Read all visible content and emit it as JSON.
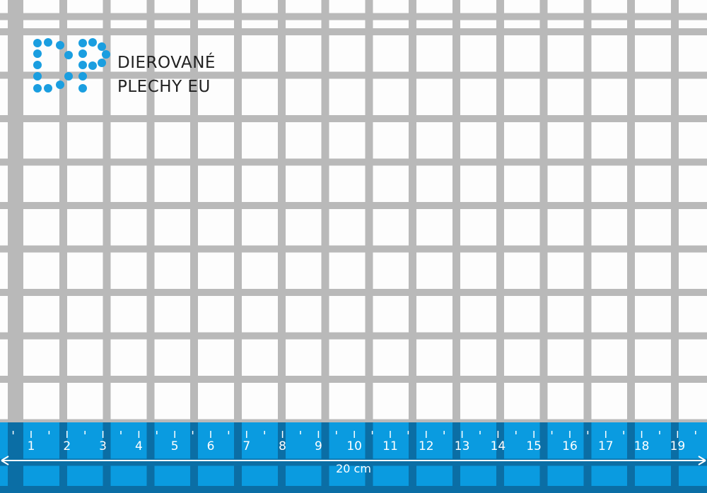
{
  "logo": {
    "line1": "DIEROVANÉ",
    "line2": "PLECHY EU",
    "color": "#1a9ee0"
  },
  "ruler": {
    "labels": [
      "1",
      "2",
      "3",
      "4",
      "5",
      "6",
      "7",
      "8",
      "9",
      "10",
      "11",
      "12",
      "13",
      "14",
      "15",
      "16",
      "17",
      "18",
      "19"
    ],
    "length_label": "20 cm",
    "color": "#0a9be0"
  }
}
